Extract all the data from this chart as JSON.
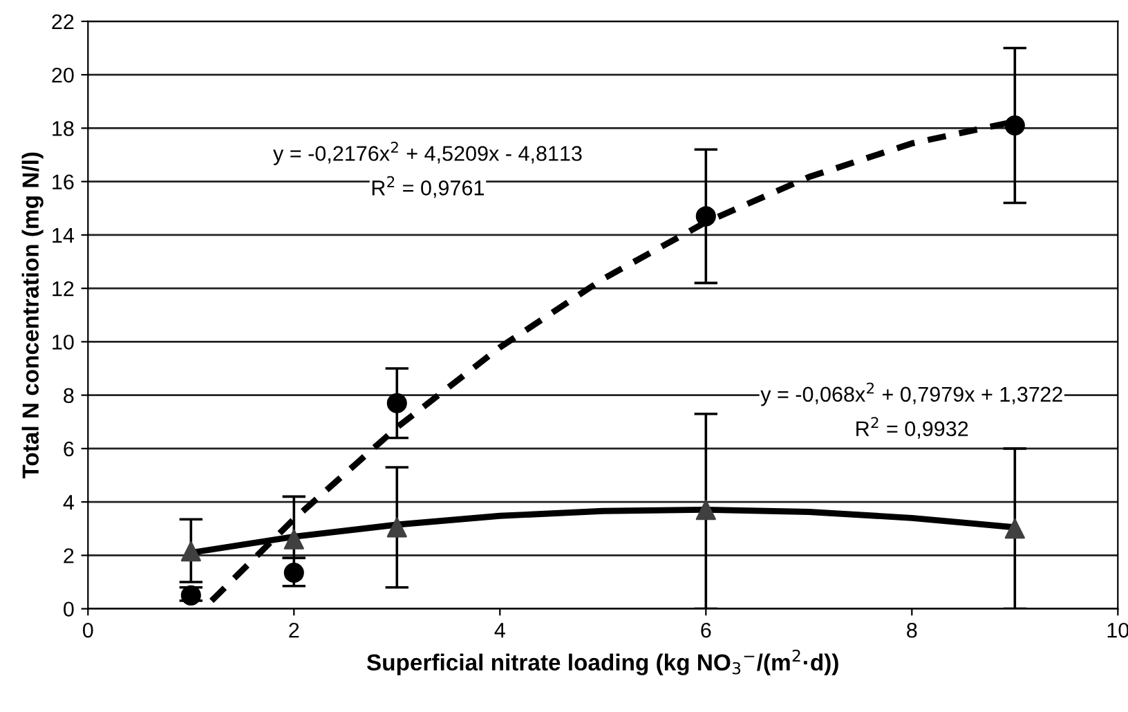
{
  "chart_data": {
    "type": "scatter",
    "xlabel": "Superficial nitrate loading (kg NO$_{3}$$^{−}$/(m$^{2}$·d))",
    "ylabel": "Total N concentration (mg N/l)",
    "xlim": [
      0,
      10
    ],
    "xticks": [
      0,
      2,
      4,
      6,
      8,
      10
    ],
    "ylim": [
      0,
      22
    ],
    "yticks": [
      0,
      2,
      4,
      6,
      8,
      10,
      12,
      14,
      16,
      18,
      20,
      22
    ],
    "grid": "y",
    "series": [
      {
        "type": "line",
        "line_style": "dashed",
        "marker": "none",
        "color": "#000000",
        "x": [
          1.2,
          2,
          3,
          4,
          5,
          6,
          7,
          8,
          9
        ],
        "values": [
          0.3,
          3.36,
          6.79,
          9.79,
          12.35,
          14.48,
          16.17,
          17.43,
          18.25
        ]
      },
      {
        "type": "line",
        "line_style": "solid",
        "marker": "none",
        "color": "#000000",
        "x": [
          1,
          2,
          3,
          4,
          5,
          6,
          7,
          8,
          9
        ],
        "values": [
          2.1,
          2.7,
          3.15,
          3.48,
          3.66,
          3.71,
          3.63,
          3.4,
          3.05
        ]
      },
      {
        "marker": "circle",
        "color": "#000000",
        "x": [
          1,
          2,
          3,
          6,
          9
        ],
        "values": [
          0.5,
          1.35,
          7.7,
          14.7,
          18.1
        ],
        "errors": [
          [
            0.3,
            0.8
          ],
          [
            0.85,
            1.9
          ],
          [
            6.4,
            9.0
          ],
          [
            12.2,
            17.2
          ],
          [
            15.2,
            21.0
          ]
        ]
      },
      {
        "marker": "triangle",
        "color": "#404040",
        "x": [
          1,
          2,
          3,
          6,
          9
        ],
        "values": [
          2.15,
          2.6,
          3.05,
          3.7,
          3.0
        ],
        "errors": [
          [
            1.0,
            3.35
          ],
          [
            1.9,
            4.2
          ],
          [
            0.8,
            5.3
          ],
          [
            0.0,
            7.3
          ],
          [
            0.0,
            6.0
          ]
        ]
      }
    ],
    "annotations": [
      "y = -0,2176x$^{2}$ + 4,5209x - 4,8113",
      "R$^{2}$ = 0,9761",
      "y = -0,068x$^{2}$ + 0,7979x + 1,3722",
      "R$^{2}$ = 0,9932"
    ]
  }
}
